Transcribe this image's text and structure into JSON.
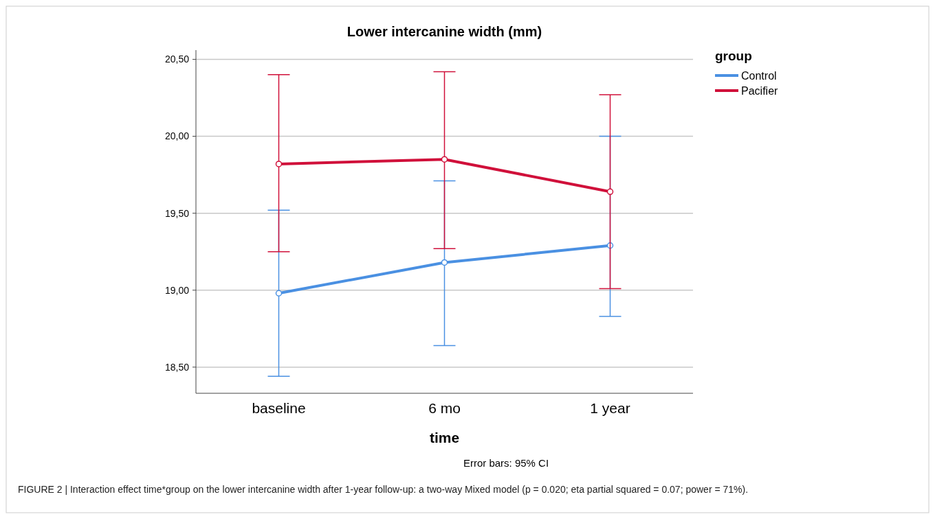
{
  "chart_data": {
    "type": "line",
    "title": "Lower intercanine width (mm)",
    "xlabel": "time",
    "legend_title": "group",
    "categories": [
      "baseline",
      "6 mo",
      "1 year"
    ],
    "series": [
      {
        "name": "Control",
        "color": "#4a90e2",
        "values": [
          18.98,
          19.18,
          19.29
        ],
        "errors": [
          [
            18.44,
            19.52
          ],
          [
            18.64,
            19.71
          ],
          [
            18.83,
            20.0
          ]
        ]
      },
      {
        "name": "Pacifier",
        "color": "#d0103a",
        "values": [
          19.82,
          19.85,
          19.64
        ],
        "errors": [
          [
            19.25,
            20.4
          ],
          [
            19.27,
            20.42
          ],
          [
            19.01,
            20.27
          ]
        ]
      }
    ],
    "ylim": [
      18.33,
      20.56
    ],
    "yticks": [
      {
        "value": 18.5,
        "label": "18,50"
      },
      {
        "value": 19,
        "label": "19,00"
      },
      {
        "value": 19.5,
        "label": "19,50"
      },
      {
        "value": 20,
        "label": "20,00"
      },
      {
        "value": 20.5,
        "label": "20,50"
      }
    ],
    "grid": "y",
    "legend": "top right",
    "marker": "circle",
    "line_style": "solid",
    "annotations": [
      "Error bars: 95% CI",
      "FIGURE 2 | Interaction effect time*group on the lower intercanine width after 1-year follow-up: a two-way Mixed model (p = 0.020; eta partial squared = 0.07; power = 71%)."
    ]
  }
}
